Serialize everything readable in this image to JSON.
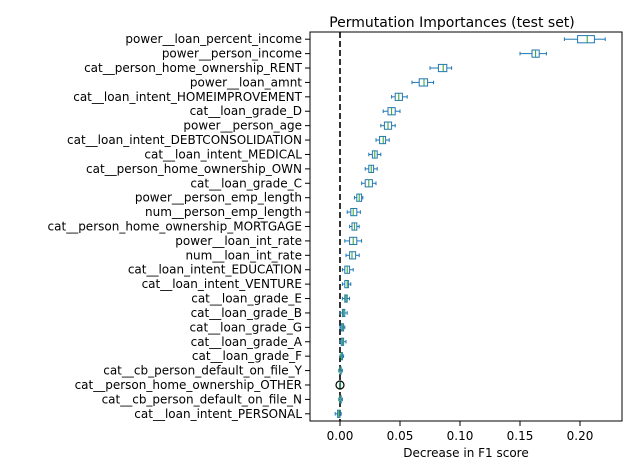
{
  "chart_data": {
    "type": "box",
    "orientation": "horizontal",
    "title": "Permutation Importances (test set)",
    "xlabel": "Decrease in F1 score",
    "ylabel": "",
    "xlim": [
      -0.025,
      0.235
    ],
    "xticks": [
      0.0,
      0.05,
      0.1,
      0.15,
      0.2
    ],
    "xtick_labels": [
      "0.00",
      "0.05",
      "0.10",
      "0.15",
      "0.20"
    ],
    "reference_line": {
      "x": 0,
      "style": "dashed",
      "color": "#000000"
    },
    "box_color": "#1f77b4",
    "median_color": "#2ca02c",
    "grid": false,
    "features": [
      {
        "name": "power__loan_percent_income",
        "whislo": 0.187,
        "q1": 0.198,
        "med": 0.206,
        "q3": 0.212,
        "whishi": 0.221
      },
      {
        "name": "power__person_income",
        "whislo": 0.15,
        "q1": 0.16,
        "med": 0.163,
        "q3": 0.166,
        "whishi": 0.172
      },
      {
        "name": "cat__person_home_ownership_RENT",
        "whislo": 0.075,
        "q1": 0.082,
        "med": 0.086,
        "q3": 0.089,
        "whishi": 0.093
      },
      {
        "name": "power__loan_amnt",
        "whislo": 0.06,
        "q1": 0.066,
        "med": 0.07,
        "q3": 0.073,
        "whishi": 0.078
      },
      {
        "name": "cat__loan_intent_HOMEIMPROVEMENT",
        "whislo": 0.043,
        "q1": 0.046,
        "med": 0.049,
        "q3": 0.052,
        "whishi": 0.056
      },
      {
        "name": "cat__loan_grade_D",
        "whislo": 0.036,
        "q1": 0.04,
        "med": 0.043,
        "q3": 0.046,
        "whishi": 0.05
      },
      {
        "name": "power__person_age",
        "whislo": 0.034,
        "q1": 0.037,
        "med": 0.04,
        "q3": 0.043,
        "whishi": 0.046
      },
      {
        "name": "cat__loan_intent_DEBTCONSOLIDATION",
        "whislo": 0.03,
        "q1": 0.033,
        "med": 0.036,
        "q3": 0.038,
        "whishi": 0.041
      },
      {
        "name": "cat__loan_intent_MEDICAL",
        "whislo": 0.024,
        "q1": 0.027,
        "med": 0.029,
        "q3": 0.031,
        "whishi": 0.034
      },
      {
        "name": "cat__person_home_ownership_OWN",
        "whislo": 0.021,
        "q1": 0.024,
        "med": 0.026,
        "q3": 0.028,
        "whishi": 0.031
      },
      {
        "name": "cat__loan_grade_C",
        "whislo": 0.018,
        "q1": 0.021,
        "med": 0.024,
        "q3": 0.027,
        "whishi": 0.03
      },
      {
        "name": "power__person_emp_length",
        "whislo": 0.012,
        "q1": 0.014,
        "med": 0.016,
        "q3": 0.018,
        "whishi": 0.019
      },
      {
        "name": "num__person_emp_length",
        "whislo": 0.006,
        "q1": 0.009,
        "med": 0.011,
        "q3": 0.014,
        "whishi": 0.017
      },
      {
        "name": "cat__person_home_ownership_MORTGAGE",
        "whislo": 0.008,
        "q1": 0.01,
        "med": 0.012,
        "q3": 0.014,
        "whishi": 0.016
      },
      {
        "name": "power__loan_int_rate",
        "whislo": 0.004,
        "q1": 0.008,
        "med": 0.011,
        "q3": 0.014,
        "whishi": 0.018
      },
      {
        "name": "num__loan_int_rate",
        "whislo": 0.005,
        "q1": 0.008,
        "med": 0.01,
        "q3": 0.013,
        "whishi": 0.016
      },
      {
        "name": "cat__loan_intent_EDUCATION",
        "whislo": 0.002,
        "q1": 0.004,
        "med": 0.006,
        "q3": 0.008,
        "whishi": 0.011
      },
      {
        "name": "cat__loan_intent_VENTURE",
        "whislo": 0.002,
        "q1": 0.004,
        "med": 0.006,
        "q3": 0.007,
        "whishi": 0.009
      },
      {
        "name": "cat__loan_grade_E",
        "whislo": 0.002,
        "q1": 0.004,
        "med": 0.005,
        "q3": 0.006,
        "whishi": 0.008
      },
      {
        "name": "cat__loan_grade_B",
        "whislo": 0.0,
        "q1": 0.002,
        "med": 0.003,
        "q3": 0.004,
        "whishi": 0.006
      },
      {
        "name": "cat__loan_grade_G",
        "whislo": 0.0,
        "q1": 0.001,
        "med": 0.002,
        "q3": 0.003,
        "whishi": 0.004
      },
      {
        "name": "cat__loan_grade_A",
        "whislo": 0.0,
        "q1": 0.001,
        "med": 0.002,
        "q3": 0.003,
        "whishi": 0.005
      },
      {
        "name": "cat__loan_grade_F",
        "whislo": 0.0,
        "q1": 0.001,
        "med": 0.001,
        "q3": 0.002,
        "whishi": 0.003
      },
      {
        "name": "cat__cb_person_default_on_file_Y",
        "whislo": -0.001,
        "q1": 0.0,
        "med": 0.0,
        "q3": 0.001,
        "whishi": 0.002
      },
      {
        "name": "cat__person_home_ownership_OTHER",
        "whislo": 0.0,
        "q1": 0.0,
        "med": 0.0,
        "q3": 0.0,
        "whishi": 0.0,
        "outliers": [
          0.0
        ]
      },
      {
        "name": "cat__cb_person_default_on_file_N",
        "whislo": -0.001,
        "q1": 0.0,
        "med": 0.0,
        "q3": 0.001,
        "whishi": 0.002
      },
      {
        "name": "cat__loan_intent_PERSONAL",
        "whislo": -0.004,
        "q1": -0.002,
        "med": -0.001,
        "q3": 0.0,
        "whishi": 0.001
      }
    ]
  }
}
